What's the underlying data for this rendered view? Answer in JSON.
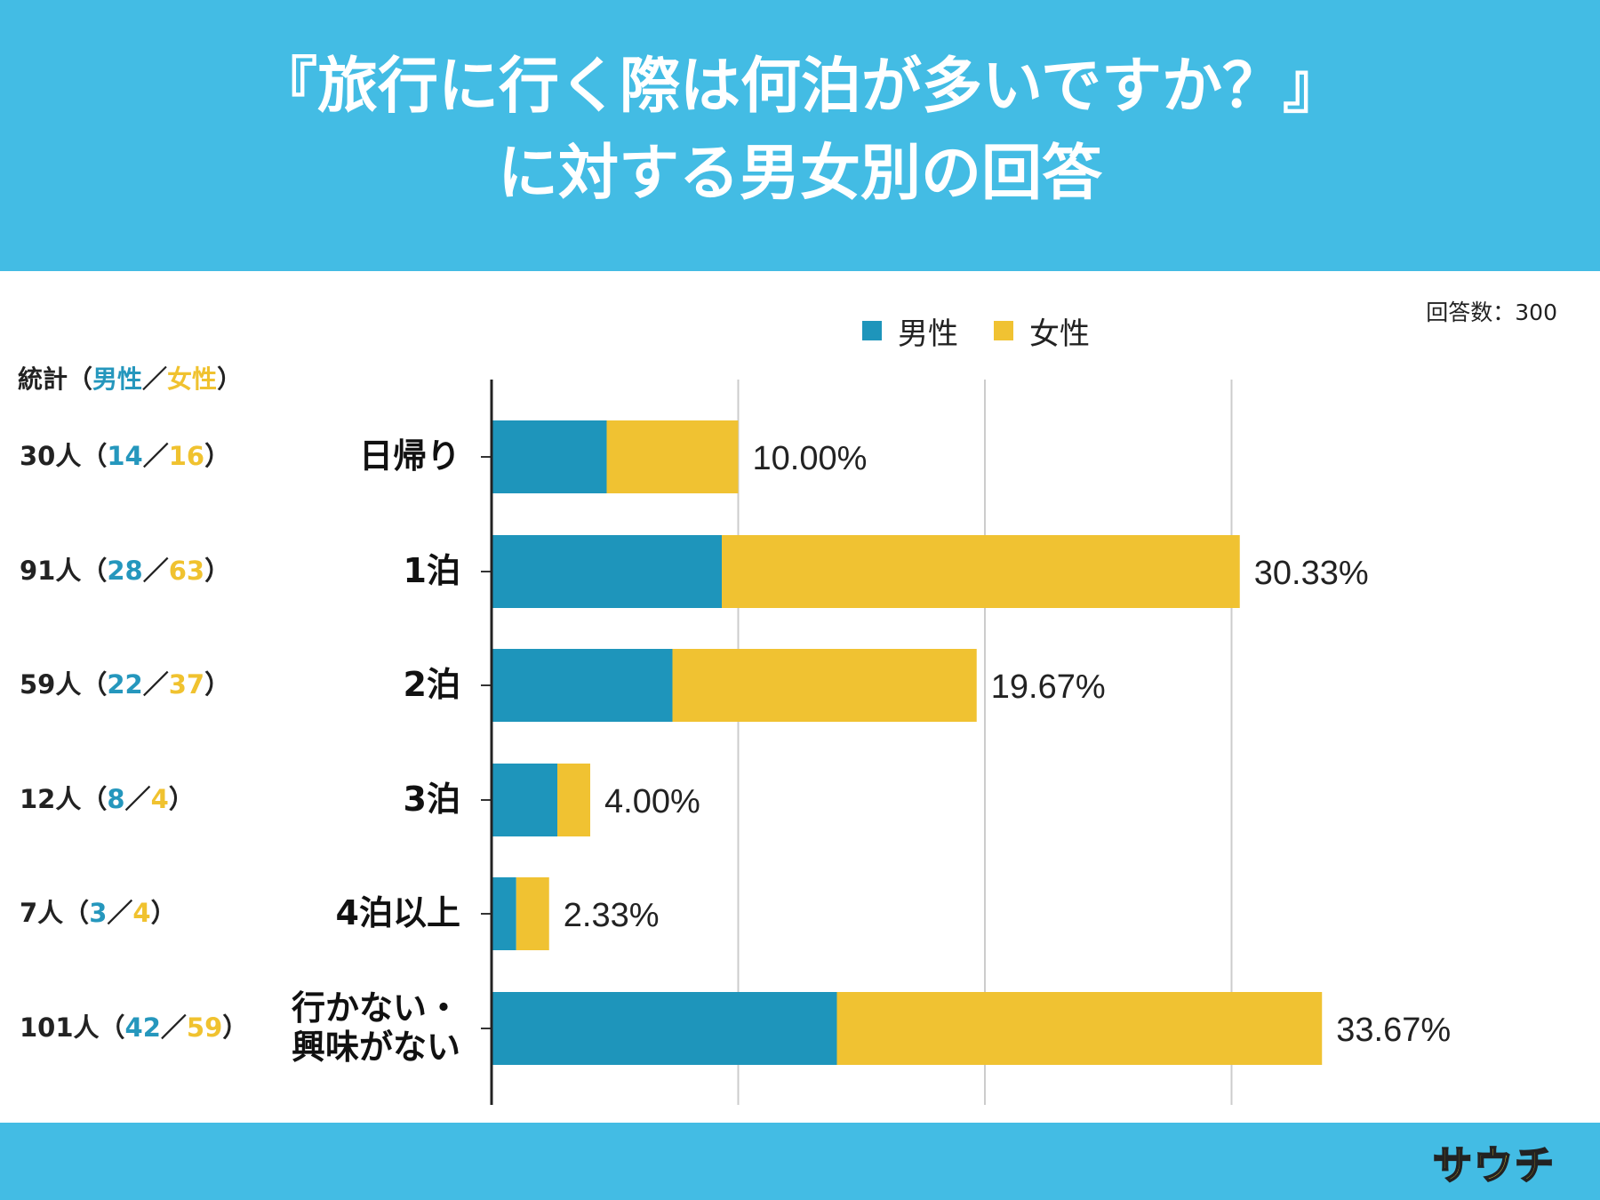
{
  "title": {
    "line1": "『旅行に行く際は何泊が多いですか？』",
    "line2": "に対する男女別の回答"
  },
  "respondents": "回答数：300",
  "legend": {
    "male": "男性",
    "female": "女性"
  },
  "stats_header": {
    "prefix": "統計（",
    "male": "男性",
    "sep": "／",
    "female": "女性",
    "suffix": "）"
  },
  "stats": [
    {
      "total": "30人",
      "male": "14",
      "female": "16"
    },
    {
      "total": "91人",
      "male": "28",
      "female": "63"
    },
    {
      "total": "59人",
      "male": "22",
      "female": "37"
    },
    {
      "total": "12人",
      "male": "8",
      "female": "4"
    },
    {
      "total": "7人",
      "male": "3",
      "female": "4"
    },
    {
      "total": "101人",
      "male": "42",
      "female": "59"
    }
  ],
  "chart_data": {
    "type": "bar",
    "orientation": "horizontal",
    "stacked": true,
    "categories": [
      "日帰り",
      "1泊",
      "2泊",
      "3泊",
      "4泊以上",
      "行かない・興味がない"
    ],
    "category_lines": [
      [
        "日帰り"
      ],
      [
        "1泊"
      ],
      [
        "2泊"
      ],
      [
        "3泊"
      ],
      [
        "4泊以上"
      ],
      [
        "行かない・",
        "興味がない"
      ]
    ],
    "series": [
      {
        "name": "男性",
        "values": [
          14,
          28,
          22,
          8,
          3,
          42
        ]
      },
      {
        "name": "女性",
        "values": [
          16,
          63,
          37,
          4,
          4,
          59
        ]
      }
    ],
    "data_labels": [
      "10.00%",
      "30.33%",
      "19.67%",
      "4.00%",
      "2.33%",
      "33.67%"
    ],
    "xlim": [
      0,
      120
    ],
    "x_gridlines": [
      0,
      30,
      60,
      90
    ],
    "grid": true,
    "legend_position": "top"
  },
  "footer": {
    "logo": "サウチ"
  },
  "colors": {
    "male": "#1e95bb",
    "female": "#f0c232",
    "header": "#43bce4",
    "grid": "#cccccc"
  }
}
